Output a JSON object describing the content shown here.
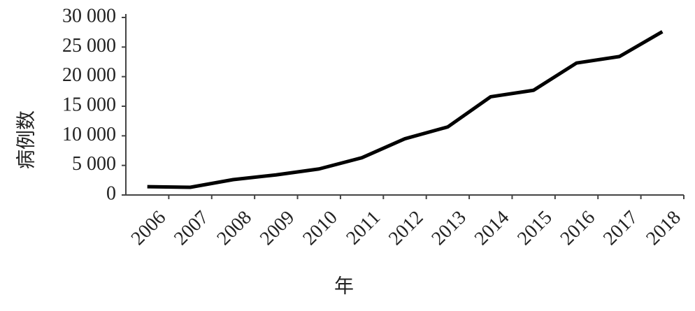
{
  "chart_data": {
    "type": "line",
    "x_label": "年",
    "y_label": "病例数",
    "categories": [
      "2006",
      "2007",
      "2008",
      "2009",
      "2010",
      "2011",
      "2012",
      "2013",
      "2014",
      "2015",
      "2016",
      "2017",
      "2018"
    ],
    "series": [
      {
        "name": "病例数",
        "color": "#000000",
        "values": [
          1400,
          1300,
          2600,
          3400,
          4400,
          6300,
          9500,
          11500,
          16600,
          17700,
          22300,
          23400,
          27600
        ]
      }
    ],
    "ylim": [
      0,
      30000
    ],
    "yticks": [
      0,
      {
        "value": 5000,
        "label": "5 000"
      },
      {
        "value": 10000,
        "label": "10 000"
      },
      {
        "value": 15000,
        "label": "15 000"
      },
      {
        "value": 20000,
        "label": "20 000"
      },
      {
        "value": 25000,
        "label": "25 000"
      },
      {
        "value": 30000,
        "label": "30 000"
      }
    ],
    "grid": false
  }
}
